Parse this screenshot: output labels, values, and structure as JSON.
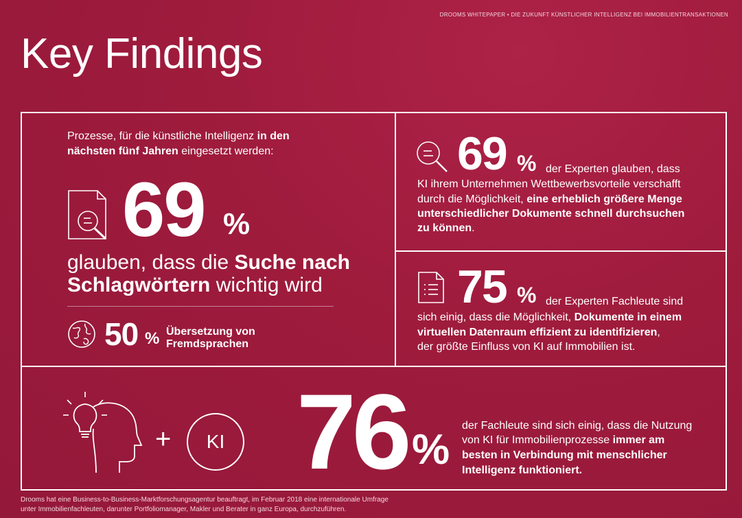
{
  "header": "DROOMS WHITEPAPER  •  DIE ZUKUNFT KÜNSTLICHER INTELLIGENZ BEI IMMOBILIENTRANSAKTIONEN",
  "title": "Key Findings",
  "left_box": {
    "intro_1": "Prozesse, für die künstliche Intelligenz ",
    "intro_bold_1": "in den",
    "intro_bold_2": "nächsten fünf Jahren",
    "intro_2": " eingesetzt werden:",
    "big_number": "69",
    "percent": "%",
    "line1_a": "glauben, dass die ",
    "line1_b": "Suche nach",
    "line2_a": "Schlagwörtern",
    "line2_b": " wichtig wird",
    "small_number": "50",
    "small_percent": "%",
    "small_text_1": "Übersetzung von",
    "small_text_2": "Fremdsprachen",
    "icon_doc": "document-search-icon",
    "icon_globe": "globe-icon"
  },
  "top_right": {
    "icon": "magnifier-icon",
    "number": "69",
    "percent": "%",
    "t1": "der Experten glauben, dass",
    "t2": "KI ihrem Unternehmen Wettbewerbsvorteile verschafft",
    "t3a": "durch die Möglichkeit, ",
    "t3b": "eine erheblich größere Menge",
    "t4": "unterschiedlicher Dokumente schnell durchsuchen",
    "t5": "zu können",
    "t5c": "."
  },
  "mid_right": {
    "icon": "document-list-icon",
    "number": "75",
    "percent": "%",
    "t1": "der Experten Fachleute sind",
    "t2a": "sich einig, dass die Möglichkeit, ",
    "t2b": "Dokumente in einem",
    "t3": "virtuellen Datenraum effizient zu identifizieren",
    "t3c": ",",
    "t4": "der größte Einfluss von KI auf Immobilien ist."
  },
  "bottom": {
    "icon_head": "human-head-lightbulb-icon",
    "plus": "+",
    "ki": "KI",
    "number": "76",
    "percent": "%",
    "t1": "der Fachleute sind sich einig, dass die Nutzung",
    "t2a": "von KI für Immobilienprozesse ",
    "t2b": "immer am",
    "t3": "besten in Verbindung mit menschlicher",
    "t4": "Intelligenz funktioniert."
  },
  "footnote_1": "Drooms hat eine Business-to-Business-Marktforschungsagentur beauftragt, im Februar 2018 eine internationale Umfrage",
  "footnote_2": "unter Immobilienfachleuten, darunter Portfoliomanager, Makler und Berater in ganz Europa, durchzuführen."
}
